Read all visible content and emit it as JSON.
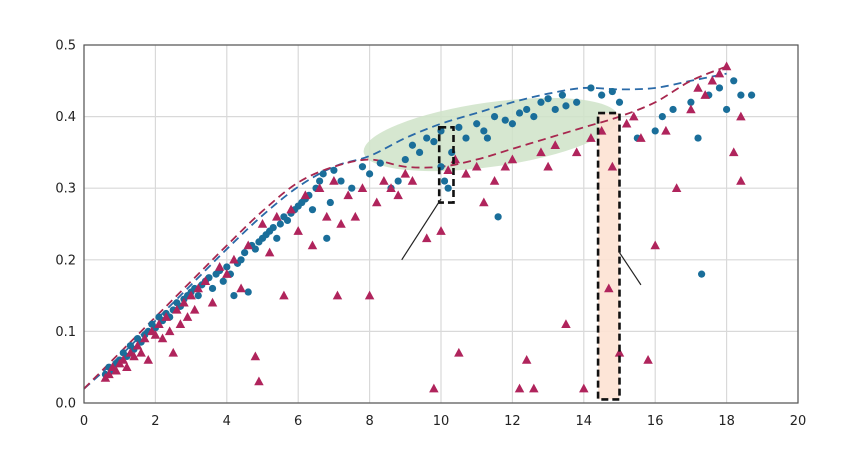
{
  "chart_data": {
    "type": "scatter",
    "title": "",
    "xlabel": "",
    "ylabel": "",
    "xlim": [
      0,
      20
    ],
    "ylim": [
      0,
      0.5
    ],
    "x_ticks": [
      0,
      2,
      4,
      6,
      8,
      10,
      12,
      14,
      16,
      18,
      20
    ],
    "y_ticks": [
      0,
      0.1,
      0.2,
      0.3,
      0.4,
      0.5
    ],
    "x_tick_labels": [
      "0",
      "2",
      "4",
      "6",
      "8",
      "10",
      "12",
      "14",
      "16",
      "18",
      "20"
    ],
    "y_tick_labels": [
      "0.0",
      "0.1",
      "0.2",
      "0.3",
      "0.4",
      "0.5"
    ],
    "grid": true,
    "legend": "none",
    "colors": {
      "circles": "#1a6e9a",
      "triangles": "#b0245c",
      "envelope_circles": "#2a6aa8",
      "envelope_triangles": "#a8284f",
      "ellipse_fill": "#cfe3c8",
      "highlight_fill": "#fde2d3"
    },
    "series": [
      {
        "marker": "circle",
        "color": "#1a6e9a",
        "points": [
          [
            0.6,
            0.04
          ],
          [
            0.7,
            0.05
          ],
          [
            0.8,
            0.045
          ],
          [
            0.9,
            0.055
          ],
          [
            1.0,
            0.06
          ],
          [
            1.1,
            0.07
          ],
          [
            1.2,
            0.065
          ],
          [
            1.3,
            0.08
          ],
          [
            1.4,
            0.075
          ],
          [
            1.5,
            0.09
          ],
          [
            1.6,
            0.085
          ],
          [
            1.7,
            0.095
          ],
          [
            1.8,
            0.1
          ],
          [
            1.9,
            0.11
          ],
          [
            2.0,
            0.105
          ],
          [
            2.1,
            0.12
          ],
          [
            2.2,
            0.115
          ],
          [
            2.3,
            0.125
          ],
          [
            2.4,
            0.12
          ],
          [
            2.5,
            0.13
          ],
          [
            2.6,
            0.14
          ],
          [
            2.7,
            0.135
          ],
          [
            2.8,
            0.145
          ],
          [
            2.9,
            0.15
          ],
          [
            3.0,
            0.155
          ],
          [
            3.1,
            0.16
          ],
          [
            3.2,
            0.15
          ],
          [
            3.3,
            0.165
          ],
          [
            3.4,
            0.17
          ],
          [
            3.5,
            0.175
          ],
          [
            3.6,
            0.16
          ],
          [
            3.7,
            0.18
          ],
          [
            3.8,
            0.185
          ],
          [
            3.9,
            0.17
          ],
          [
            4.0,
            0.19
          ],
          [
            4.1,
            0.18
          ],
          [
            4.2,
            0.15
          ],
          [
            4.3,
            0.195
          ],
          [
            4.4,
            0.2
          ],
          [
            4.5,
            0.21
          ],
          [
            4.6,
            0.155
          ],
          [
            4.7,
            0.22
          ],
          [
            4.8,
            0.215
          ],
          [
            4.9,
            0.225
          ],
          [
            5.0,
            0.23
          ],
          [
            5.1,
            0.235
          ],
          [
            5.2,
            0.24
          ],
          [
            5.3,
            0.245
          ],
          [
            5.4,
            0.23
          ],
          [
            5.5,
            0.25
          ],
          [
            5.6,
            0.26
          ],
          [
            5.7,
            0.255
          ],
          [
            5.8,
            0.265
          ],
          [
            5.9,
            0.27
          ],
          [
            6.0,
            0.275
          ],
          [
            6.1,
            0.28
          ],
          [
            6.2,
            0.285
          ],
          [
            6.3,
            0.29
          ],
          [
            6.4,
            0.27
          ],
          [
            6.5,
            0.3
          ],
          [
            6.6,
            0.31
          ],
          [
            6.7,
            0.32
          ],
          [
            6.8,
            0.23
          ],
          [
            6.9,
            0.28
          ],
          [
            7.0,
            0.325
          ],
          [
            7.2,
            0.31
          ],
          [
            7.5,
            0.3
          ],
          [
            7.8,
            0.33
          ],
          [
            8.0,
            0.32
          ],
          [
            8.3,
            0.335
          ],
          [
            8.6,
            0.3
          ],
          [
            8.8,
            0.31
          ],
          [
            9.0,
            0.34
          ],
          [
            9.2,
            0.36
          ],
          [
            9.4,
            0.35
          ],
          [
            9.6,
            0.37
          ],
          [
            9.8,
            0.365
          ],
          [
            10.0,
            0.38
          ],
          [
            10.0,
            0.33
          ],
          [
            10.1,
            0.31
          ],
          [
            10.2,
            0.3
          ],
          [
            10.3,
            0.35
          ],
          [
            10.5,
            0.385
          ],
          [
            10.7,
            0.37
          ],
          [
            11.0,
            0.39
          ],
          [
            11.2,
            0.38
          ],
          [
            11.3,
            0.37
          ],
          [
            11.5,
            0.4
          ],
          [
            11.6,
            0.26
          ],
          [
            11.8,
            0.395
          ],
          [
            12.0,
            0.39
          ],
          [
            12.2,
            0.405
          ],
          [
            12.4,
            0.41
          ],
          [
            12.6,
            0.4
          ],
          [
            12.8,
            0.42
          ],
          [
            13.0,
            0.425
          ],
          [
            13.2,
            0.41
          ],
          [
            13.4,
            0.43
          ],
          [
            13.5,
            0.415
          ],
          [
            13.8,
            0.42
          ],
          [
            14.2,
            0.44
          ],
          [
            14.5,
            0.43
          ],
          [
            14.8,
            0.435
          ],
          [
            15.0,
            0.42
          ],
          [
            15.5,
            0.37
          ],
          [
            16.0,
            0.38
          ],
          [
            16.2,
            0.4
          ],
          [
            16.5,
            0.41
          ],
          [
            17.0,
            0.42
          ],
          [
            17.2,
            0.37
          ],
          [
            17.3,
            0.18
          ],
          [
            17.5,
            0.43
          ],
          [
            17.8,
            0.44
          ],
          [
            18.0,
            0.41
          ],
          [
            18.2,
            0.45
          ],
          [
            18.4,
            0.43
          ],
          [
            18.7,
            0.43
          ]
        ]
      },
      {
        "marker": "triangle",
        "color": "#b0245c",
        "points": [
          [
            0.6,
            0.035
          ],
          [
            0.7,
            0.04
          ],
          [
            0.8,
            0.05
          ],
          [
            0.9,
            0.045
          ],
          [
            1.0,
            0.055
          ],
          [
            1.1,
            0.06
          ],
          [
            1.2,
            0.05
          ],
          [
            1.3,
            0.07
          ],
          [
            1.4,
            0.065
          ],
          [
            1.5,
            0.08
          ],
          [
            1.6,
            0.07
          ],
          [
            1.7,
            0.09
          ],
          [
            1.8,
            0.06
          ],
          [
            1.9,
            0.1
          ],
          [
            2.0,
            0.095
          ],
          [
            2.1,
            0.11
          ],
          [
            2.2,
            0.09
          ],
          [
            2.3,
            0.12
          ],
          [
            2.4,
            0.1
          ],
          [
            2.5,
            0.07
          ],
          [
            2.6,
            0.13
          ],
          [
            2.7,
            0.11
          ],
          [
            2.8,
            0.14
          ],
          [
            2.9,
            0.12
          ],
          [
            3.0,
            0.15
          ],
          [
            3.1,
            0.13
          ],
          [
            3.2,
            0.16
          ],
          [
            3.4,
            0.17
          ],
          [
            3.6,
            0.14
          ],
          [
            3.8,
            0.19
          ],
          [
            4.0,
            0.18
          ],
          [
            4.2,
            0.2
          ],
          [
            4.4,
            0.16
          ],
          [
            4.6,
            0.22
          ],
          [
            4.8,
            0.065
          ],
          [
            4.9,
            0.03
          ],
          [
            5.0,
            0.25
          ],
          [
            5.2,
            0.21
          ],
          [
            5.4,
            0.26
          ],
          [
            5.6,
            0.15
          ],
          [
            5.8,
            0.27
          ],
          [
            6.0,
            0.24
          ],
          [
            6.2,
            0.29
          ],
          [
            6.4,
            0.22
          ],
          [
            6.6,
            0.3
          ],
          [
            6.8,
            0.26
          ],
          [
            7.0,
            0.31
          ],
          [
            7.1,
            0.15
          ],
          [
            7.2,
            0.25
          ],
          [
            7.4,
            0.29
          ],
          [
            7.6,
            0.26
          ],
          [
            7.8,
            0.3
          ],
          [
            8.0,
            0.15
          ],
          [
            8.2,
            0.28
          ],
          [
            8.4,
            0.31
          ],
          [
            8.6,
            0.3
          ],
          [
            8.8,
            0.29
          ],
          [
            9.0,
            0.32
          ],
          [
            9.2,
            0.31
          ],
          [
            9.6,
            0.23
          ],
          [
            9.8,
            0.02
          ],
          [
            10.0,
            0.24
          ],
          [
            10.2,
            0.325
          ],
          [
            10.4,
            0.34
          ],
          [
            10.5,
            0.07
          ],
          [
            10.7,
            0.32
          ],
          [
            11.0,
            0.33
          ],
          [
            11.2,
            0.28
          ],
          [
            11.5,
            0.31
          ],
          [
            11.8,
            0.33
          ],
          [
            12.0,
            0.34
          ],
          [
            12.2,
            0.02
          ],
          [
            12.4,
            0.06
          ],
          [
            12.6,
            0.02
          ],
          [
            12.8,
            0.35
          ],
          [
            13.0,
            0.33
          ],
          [
            13.2,
            0.36
          ],
          [
            13.5,
            0.11
          ],
          [
            13.8,
            0.35
          ],
          [
            14.0,
            0.02
          ],
          [
            14.2,
            0.37
          ],
          [
            14.5,
            0.38
          ],
          [
            14.7,
            0.16
          ],
          [
            14.8,
            0.33
          ],
          [
            15.0,
            0.07
          ],
          [
            15.2,
            0.39
          ],
          [
            15.4,
            0.4
          ],
          [
            15.6,
            0.37
          ],
          [
            15.8,
            0.06
          ],
          [
            16.0,
            0.22
          ],
          [
            16.3,
            0.38
          ],
          [
            16.6,
            0.3
          ],
          [
            17.0,
            0.41
          ],
          [
            17.2,
            0.44
          ],
          [
            17.4,
            0.43
          ],
          [
            17.6,
            0.45
          ],
          [
            17.8,
            0.46
          ],
          [
            18.0,
            0.47
          ],
          [
            18.2,
            0.35
          ],
          [
            18.4,
            0.31
          ],
          [
            18.4,
            0.4
          ]
        ]
      }
    ],
    "envelopes": [
      {
        "style": "dashed",
        "color": "#2a6aa8",
        "points": [
          [
            0,
            0.02
          ],
          [
            1,
            0.065
          ],
          [
            2,
            0.115
          ],
          [
            3,
            0.165
          ],
          [
            4,
            0.215
          ],
          [
            5,
            0.262
          ],
          [
            6,
            0.302
          ],
          [
            7,
            0.33
          ],
          [
            8,
            0.345
          ],
          [
            9,
            0.37
          ],
          [
            10,
            0.39
          ],
          [
            11,
            0.405
          ],
          [
            12,
            0.42
          ],
          [
            13,
            0.432
          ],
          [
            14,
            0.44
          ],
          [
            15,
            0.438
          ],
          [
            16,
            0.44
          ],
          [
            17,
            0.45
          ],
          [
            18,
            0.46
          ]
        ]
      },
      {
        "style": "dashed",
        "color": "#a8284f",
        "points": [
          [
            0,
            0.02
          ],
          [
            1,
            0.07
          ],
          [
            2,
            0.12
          ],
          [
            3,
            0.17
          ],
          [
            4,
            0.22
          ],
          [
            5,
            0.268
          ],
          [
            6,
            0.308
          ],
          [
            7,
            0.33
          ],
          [
            8,
            0.34
          ],
          [
            9,
            0.33
          ],
          [
            10,
            0.33
          ],
          [
            11,
            0.34
          ],
          [
            12,
            0.355
          ],
          [
            13,
            0.37
          ],
          [
            14,
            0.385
          ],
          [
            15,
            0.4
          ],
          [
            16,
            0.42
          ],
          [
            17,
            0.45
          ],
          [
            18,
            0.47
          ]
        ]
      }
    ],
    "highlight_regions": [
      {
        "shape": "ellipse",
        "cx": 11.4,
        "cy": 0.375,
        "rx": 3.6,
        "ry": 0.045,
        "rotation_deg": -8
      },
      {
        "shape": "dashed-rect",
        "x0": 9.95,
        "x1": 10.35,
        "y0": 0.28,
        "y1": 0.385
      },
      {
        "shape": "dashed-rect",
        "x0": 14.4,
        "x1": 15.0,
        "y0": 0.005,
        "y1": 0.405
      }
    ],
    "leader_lines": [
      {
        "from": [
          8.9,
          0.2
        ],
        "to": [
          10.0,
          0.285
        ]
      },
      {
        "from": [
          15.0,
          0.21
        ],
        "to": [
          15.6,
          0.165
        ]
      }
    ]
  }
}
